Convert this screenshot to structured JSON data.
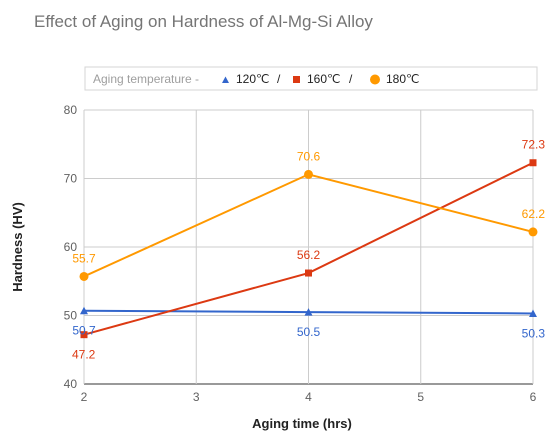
{
  "chart_data": {
    "type": "line",
    "title": "Effect of Aging on Hardness of Al-Mg-Si Alloy",
    "xlabel": "Aging time (hrs)",
    "ylabel": "Hardness (HV)",
    "x": [
      2,
      4,
      6
    ],
    "xlim": [
      2,
      6
    ],
    "ylim": [
      40,
      80
    ],
    "x_ticks": [
      "2",
      "3",
      "4",
      "5",
      "6"
    ],
    "y_ticks": [
      "40",
      "50",
      "60",
      "70",
      "80"
    ],
    "grid": true,
    "legend_position": "top",
    "legend_title": "Aging temperature -",
    "legend_separator": "/",
    "series": [
      {
        "name": "120℃",
        "values": [
          50.7,
          50.5,
          50.3
        ],
        "labels": [
          "50.7",
          "50.5",
          "50.3"
        ],
        "color": "#3366cc",
        "marker": "triangle"
      },
      {
        "name": "160℃",
        "values": [
          47.2,
          56.2,
          72.3
        ],
        "labels": [
          "47.2",
          "56.2",
          "72.3"
        ],
        "color": "#dc3912",
        "marker": "square"
      },
      {
        "name": "180℃",
        "values": [
          55.7,
          70.6,
          62.2
        ],
        "labels": [
          "55.7",
          "70.6",
          "62.2"
        ],
        "color": "#ff9900",
        "marker": "circle"
      }
    ]
  }
}
